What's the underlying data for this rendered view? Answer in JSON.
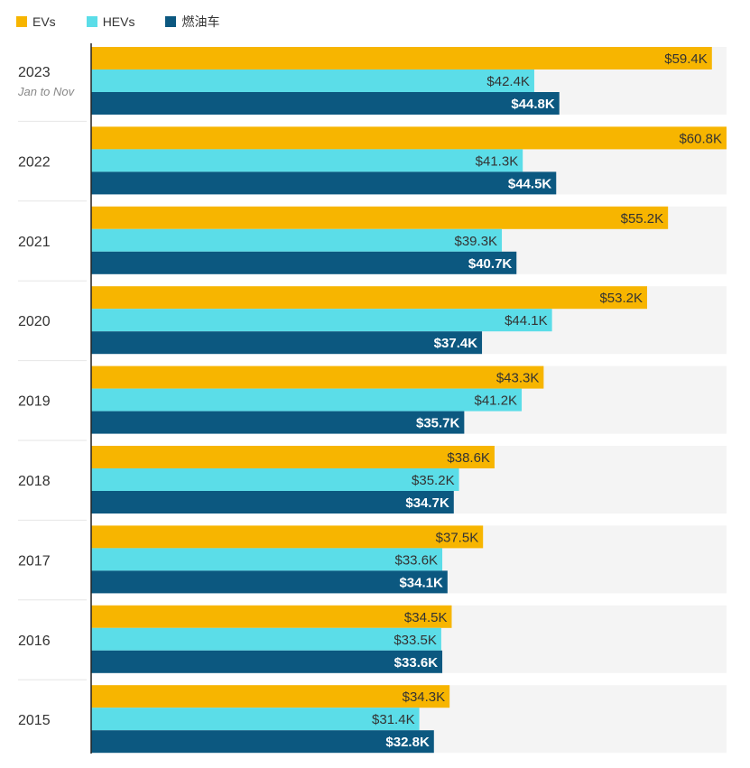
{
  "legend": [
    {
      "label": "EVs",
      "color": "#F7B500"
    },
    {
      "label": "HEVs",
      "color": "#5BDDE8"
    },
    {
      "label": "燃油车",
      "color": "#0C5880"
    }
  ],
  "chart_data": {
    "type": "bar",
    "orientation": "horizontal",
    "title": "",
    "xlabel": "",
    "ylabel": "",
    "xlim": [
      0,
      60.8
    ],
    "unit_prefix": "$",
    "unit_suffix": "K",
    "grid": false,
    "legend_position": "top-left",
    "categories": [
      "2023",
      "2022",
      "2021",
      "2020",
      "2019",
      "2018",
      "2017",
      "2016",
      "2015"
    ],
    "category_notes": [
      "Jan to Nov",
      "",
      "",
      "",
      "",
      "",
      "",
      "",
      ""
    ],
    "series": [
      {
        "name": "EVs",
        "color": "#F7B500",
        "values": [
          59.4,
          60.8,
          55.2,
          53.2,
          43.3,
          38.6,
          37.5,
          34.5,
          34.3
        ],
        "labels": [
          "$59.4K",
          "$60.8K",
          "$55.2K",
          "$53.2K",
          "$43.3K",
          "$38.6K",
          "$37.5K",
          "$34.5K",
          "$34.3K"
        ]
      },
      {
        "name": "HEVs",
        "color": "#5BDDE8",
        "values": [
          42.4,
          41.3,
          39.3,
          44.1,
          41.2,
          35.2,
          33.6,
          33.5,
          31.4
        ],
        "labels": [
          "$42.4K",
          "$41.3K",
          "$39.3K",
          "$44.1K",
          "$41.2K",
          "$35.2K",
          "$33.6K",
          "$33.5K",
          "$31.4K"
        ]
      },
      {
        "name": "燃油车",
        "color": "#0C5880",
        "values": [
          44.8,
          44.5,
          40.7,
          37.4,
          35.7,
          34.7,
          34.1,
          33.6,
          32.8
        ],
        "labels": [
          "$44.8K",
          "$44.5K",
          "$40.7K",
          "$37.4K",
          "$35.7K",
          "$34.7K",
          "$34.1K",
          "$33.6K",
          "$32.8K"
        ]
      }
    ]
  }
}
